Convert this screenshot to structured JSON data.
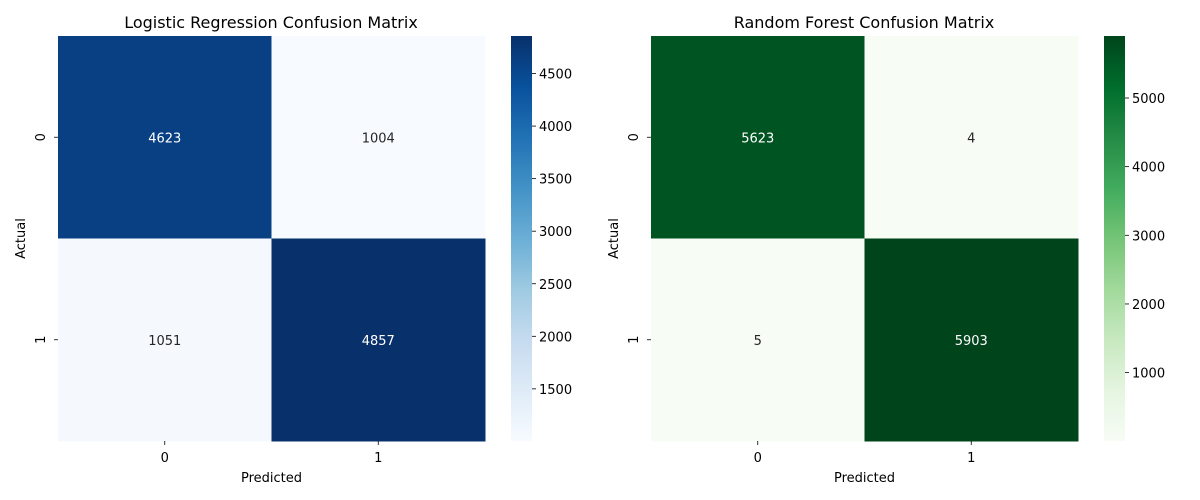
{
  "chart_data": [
    {
      "type": "heatmap",
      "title": "Logistic Regression Confusion Matrix",
      "xlabel": "Predicted",
      "ylabel": "Actual",
      "x_categories": [
        "0",
        "1"
      ],
      "y_categories": [
        "0",
        "1"
      ],
      "values": [
        [
          4623,
          1004
        ],
        [
          1051,
          4857
        ]
      ],
      "colormap": "Blues",
      "colorbar_ticks": [
        1500,
        2000,
        2500,
        3000,
        3500,
        4000,
        4500
      ],
      "colorbar_range": [
        1004,
        4857
      ]
    },
    {
      "type": "heatmap",
      "title": "Random Forest Confusion Matrix",
      "xlabel": "Predicted",
      "ylabel": "Actual",
      "x_categories": [
        "0",
        "1"
      ],
      "y_categories": [
        "0",
        "1"
      ],
      "values": [
        [
          5623,
          4
        ],
        [
          5,
          5903
        ]
      ],
      "colormap": "Greens",
      "colorbar_ticks": [
        1000,
        2000,
        3000,
        4000,
        5000
      ],
      "colorbar_range": [
        4,
        5903
      ]
    }
  ],
  "colors": {
    "blues_low": "#f7fbff",
    "blues_high": "#08306b",
    "greens_low": "#f7fcf5",
    "greens_high": "#00441b",
    "text_light": "#ffffff",
    "text_dark": "#262626",
    "axis": "#000000"
  }
}
